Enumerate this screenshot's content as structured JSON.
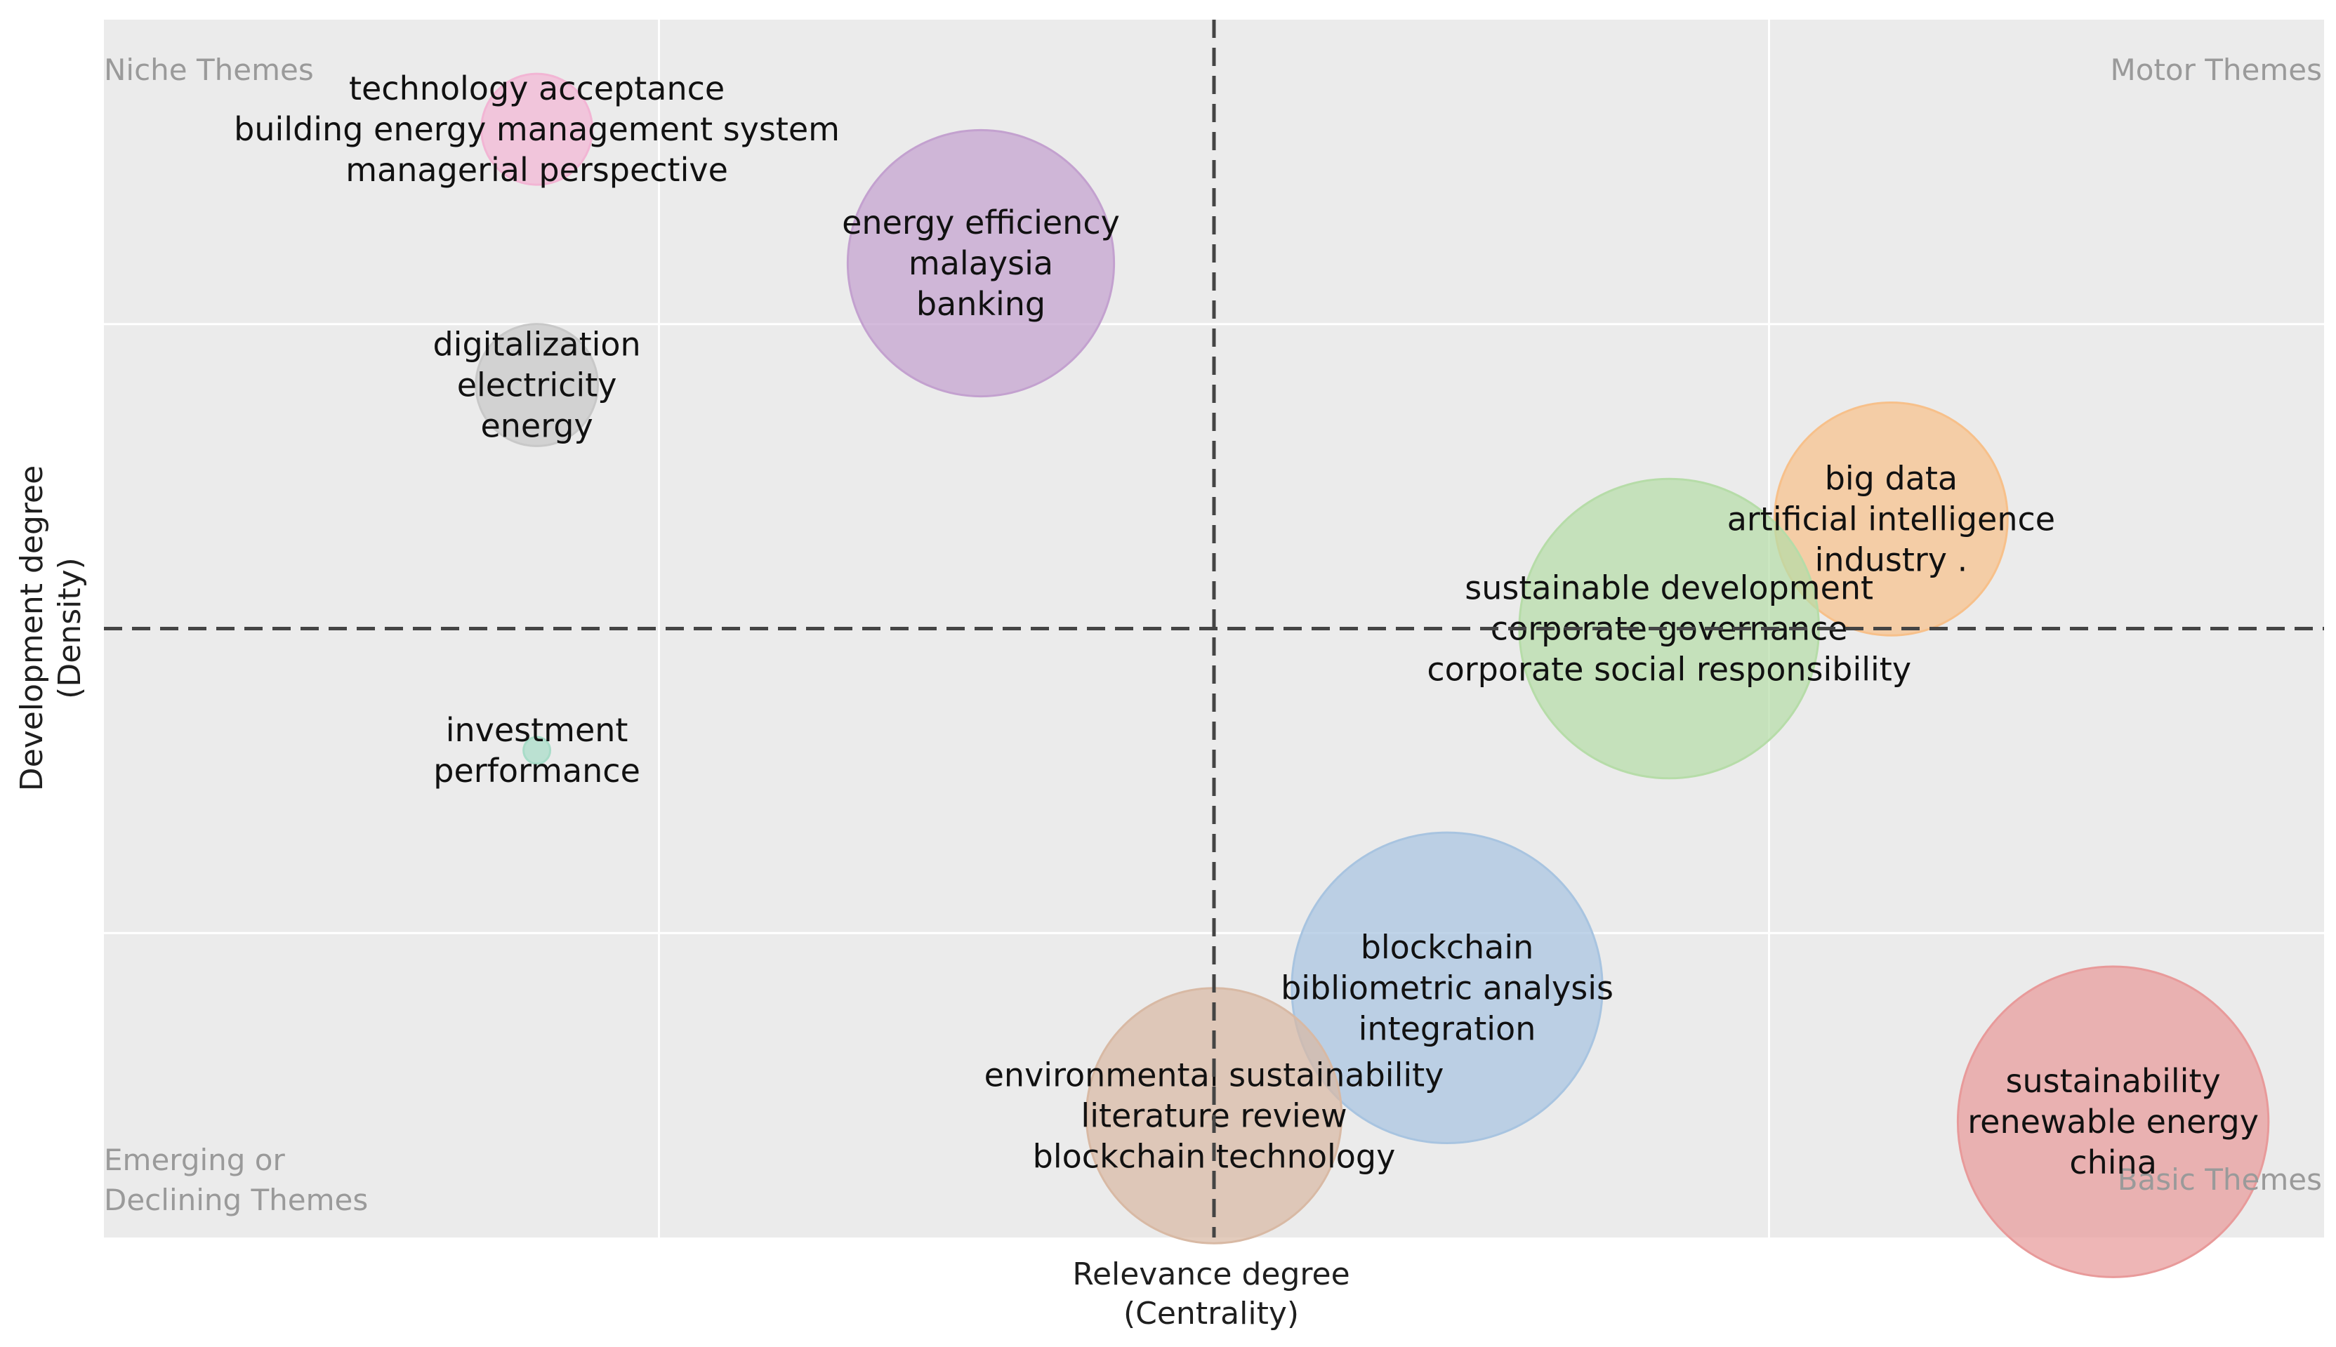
{
  "chart_data": {
    "type": "scatter",
    "title": "",
    "xlabel": [
      "Relevance degree",
      "(Centrality)"
    ],
    "ylabel": [
      "Development degree",
      "(Density)"
    ],
    "xlim": [
      0,
      10
    ],
    "ylim": [
      0,
      10
    ],
    "grid": true,
    "quadrants": {
      "top_left": "Niche Themes",
      "top_right": "Motor Themes",
      "bottom_left": [
        "Emerging or",
        "Declining Themes"
      ],
      "bottom_right": "Basic Themes"
    },
    "bubbles": [
      {
        "labels": [
          "technology acceptance",
          "building energy management system",
          "managerial perspective"
        ],
        "x": 1.95,
        "y": 9.1,
        "size": 0.5,
        "color": "#f2b5d4"
      },
      {
        "labels": [
          "energy efficiency",
          "malaysia",
          "banking"
        ],
        "x": 3.95,
        "y": 8.0,
        "size": 1.2,
        "color": "#c3a1cf"
      },
      {
        "labels": [
          "digitalization",
          "electricity",
          "energy"
        ],
        "x": 1.95,
        "y": 7.0,
        "size": 0.55,
        "color": "#c8c8c8"
      },
      {
        "labels": [
          "big data",
          "artificial intelligence",
          "industry ."
        ],
        "x": 8.05,
        "y": 5.9,
        "size": 1.05,
        "color": "#f7c08a"
      },
      {
        "labels": [
          "sustainable development",
          "corporate governance",
          "corporate social responsibility"
        ],
        "x": 7.05,
        "y": 5.0,
        "size": 1.35,
        "color": "#b6dca8"
      },
      {
        "labels": [
          "investment",
          "performance"
        ],
        "x": 1.95,
        "y": 4.0,
        "size": 0.12,
        "color": "#a8dcc8"
      },
      {
        "labels": [
          "blockchain",
          "bibliometric analysis",
          "integration"
        ],
        "x": 6.05,
        "y": 2.05,
        "size": 1.4,
        "color": "#a8c4e0"
      },
      {
        "labels": [
          "environmental sustainability",
          "literature review",
          "blockchain technology"
        ],
        "x": 5.0,
        "y": 1.0,
        "size": 1.15,
        "color": "#d8b9a4"
      },
      {
        "labels": [
          "sustainability",
          "renewable energy",
          "china"
        ],
        "x": 9.05,
        "y": 0.95,
        "size": 1.4,
        "color": "#e89a9a"
      }
    ]
  }
}
